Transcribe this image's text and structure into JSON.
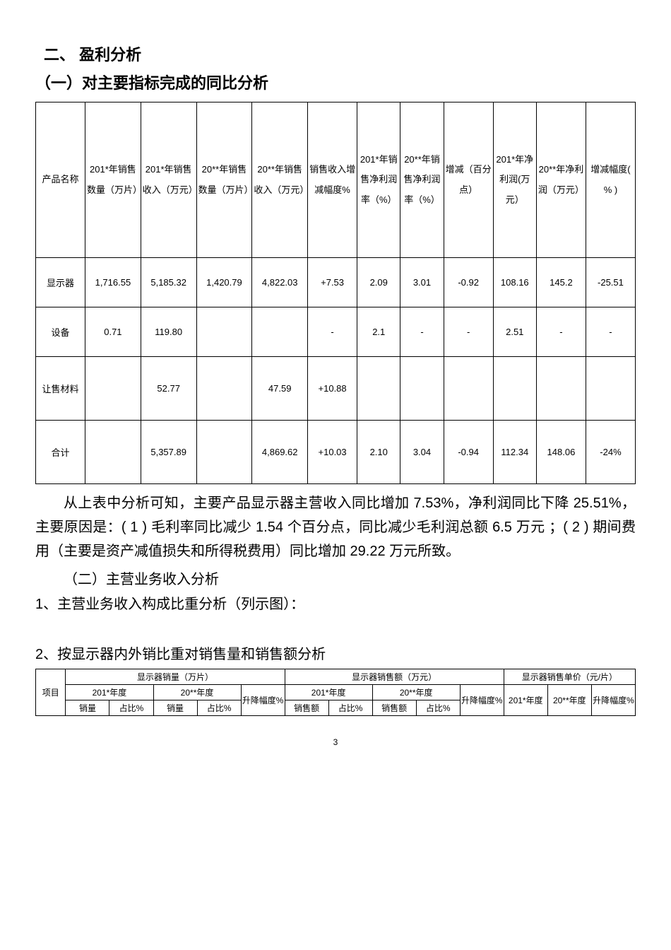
{
  "headings": {
    "h1": "二、 盈利分析",
    "h2": "（一）对主要指标完成的同比分析",
    "h3": "（二）主营业务收入分析",
    "h4": "1、主营业务收入构成比重分析（列示图）：",
    "h5": "2、按显示器内外销比重对销售量和销售额分析"
  },
  "table1": {
    "headers": [
      "产品名称",
      "201*年销售数量（万片）",
      "201*年销售收入（万元）",
      "20**年销售数量（万片）",
      "20**年销售收入（万元）",
      "销售收入增减幅度%",
      "201*年销售净利润率（%）",
      "20**年销售净利润率（%）",
      "增减（百分点）",
      "201*年净利润(万元）",
      "20**年净利润（万元）",
      "增减幅度( % )"
    ],
    "rows": [
      [
        "显示器",
        "1,716.55",
        "5,185.32",
        "1,420.79",
        "4,822.03",
        "+7.53",
        "2.09",
        "3.01",
        "-0.92",
        "108.16",
        "145.2",
        "-25.51"
      ],
      [
        "设备",
        "0.71",
        "119.80",
        "",
        "",
        "-",
        "2.1",
        "-",
        "-",
        "2.51",
        "-",
        "-"
      ],
      [
        "让售材料",
        "",
        "52.77",
        "",
        "47.59",
        "+10.88",
        "",
        "",
        "",
        "",
        "",
        ""
      ],
      [
        "合计",
        "",
        "5,357.89",
        "",
        "4,869.62",
        "+10.03",
        "2.10",
        "3.04",
        "-0.94",
        "112.34",
        "148.06",
        "-24%"
      ]
    ]
  },
  "paragraph": "从上表中分析可知，主要产品显示器主营收入同比增加 7.53%，净利润同比下降 25.51%，主要原因是：( 1 ) 毛利率同比减少 1.54 个百分点，同比减少毛利润总额 6.5 万元 ；( 2 ) 期间费用（主要是资产减值损失和所得税费用）同比增加 29.22 万元所致。",
  "table2": {
    "group_headers": [
      "显示器销量（万片）",
      "显示器销售额（万元）",
      "显示器销售单价（元/片）"
    ],
    "year_headers": [
      "201*年度",
      "20**年度",
      "201*年度",
      "20**年度"
    ],
    "col_headers_row": {
      "item": "项目",
      "cols": [
        "销量",
        "占比%",
        "销量",
        "占比%",
        "升降幅度%",
        "销售额",
        "占比%",
        "销售额",
        "占比%",
        "升降幅度%",
        "201*年度",
        "20**年度",
        "升降幅度%"
      ]
    }
  },
  "page_num": "3"
}
